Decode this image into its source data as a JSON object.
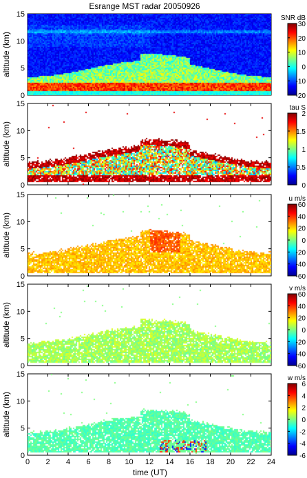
{
  "title": "Esrange MST radar 20050926",
  "xlabel": "time (UT)",
  "x_ticks": [
    0,
    2,
    4,
    6,
    8,
    10,
    12,
    14,
    16,
    18,
    20,
    22,
    24
  ],
  "xlim": [
    0,
    24
  ],
  "colormap": [
    "#00008f",
    "#0000ff",
    "#0080ff",
    "#00ffff",
    "#80ff80",
    "#ffff00",
    "#ff8000",
    "#ff0000",
    "#800000"
  ],
  "chart_data": [
    {
      "type": "heatmap",
      "ylabel": "altitude (km)",
      "ylim": [
        0,
        15
      ],
      "y_ticks": [
        0,
        5,
        10,
        15
      ],
      "colorbar_label": "SNR dB",
      "clim": [
        -20,
        30
      ],
      "colorbar_ticks": [
        -20,
        -10,
        0,
        10,
        20,
        30
      ]
    },
    {
      "type": "heatmap",
      "ylabel": "altitude (km)",
      "ylim": [
        0,
        15
      ],
      "y_ticks": [
        0,
        5,
        10,
        15
      ],
      "colorbar_label": "tau S",
      "clim": [
        0,
        2
      ],
      "colorbar_ticks": [
        0,
        0.5,
        1,
        1.5,
        2
      ]
    },
    {
      "type": "heatmap",
      "ylabel": "altitude (km)",
      "ylim": [
        0,
        15
      ],
      "y_ticks": [
        0,
        5,
        10,
        15
      ],
      "colorbar_label": "u m/s",
      "clim": [
        -60,
        60
      ],
      "colorbar_ticks": [
        -60,
        -40,
        -20,
        0,
        20,
        40,
        60
      ]
    },
    {
      "type": "heatmap",
      "ylabel": "altitude (km)",
      "ylim": [
        0,
        15
      ],
      "y_ticks": [
        0,
        5,
        10,
        15
      ],
      "colorbar_label": "v m/s",
      "clim": [
        -60,
        60
      ],
      "colorbar_ticks": [
        -60,
        -40,
        -20,
        0,
        20,
        40,
        60
      ]
    },
    {
      "type": "heatmap",
      "ylabel": "altitude (km)",
      "ylim": [
        0,
        15
      ],
      "y_ticks": [
        0,
        5,
        10,
        15
      ],
      "colorbar_label": "w m/s",
      "clim": [
        -6,
        6
      ],
      "colorbar_ticks": [
        -6,
        -4,
        -2,
        0,
        2,
        4,
        6
      ]
    }
  ]
}
